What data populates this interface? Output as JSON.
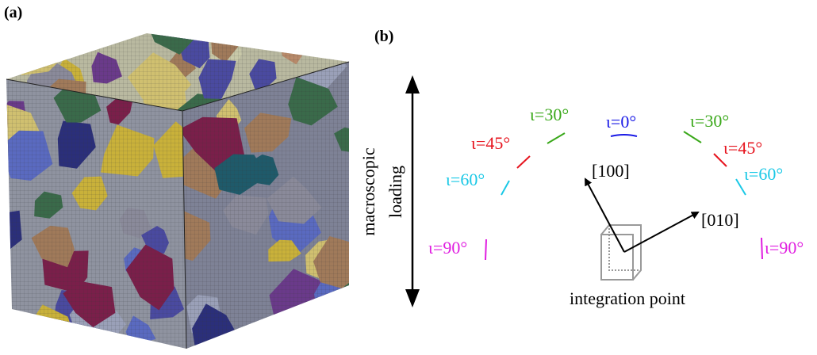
{
  "panel_a": {
    "label": "(a)"
  },
  "panel_b": {
    "label": "(b)",
    "loading_label": [
      "macroscopic",
      "loading"
    ],
    "angles": {
      "center": "ι=0°",
      "left": [
        "ι=30°",
        "ι=45°",
        "ι=60°",
        "ι=90°"
      ],
      "right": [
        "ι=30°",
        "ι=45°",
        "ι=60°",
        "ι=90°"
      ]
    },
    "directions": [
      "[100]",
      "[010]"
    ],
    "integration_label": "integration point"
  }
}
